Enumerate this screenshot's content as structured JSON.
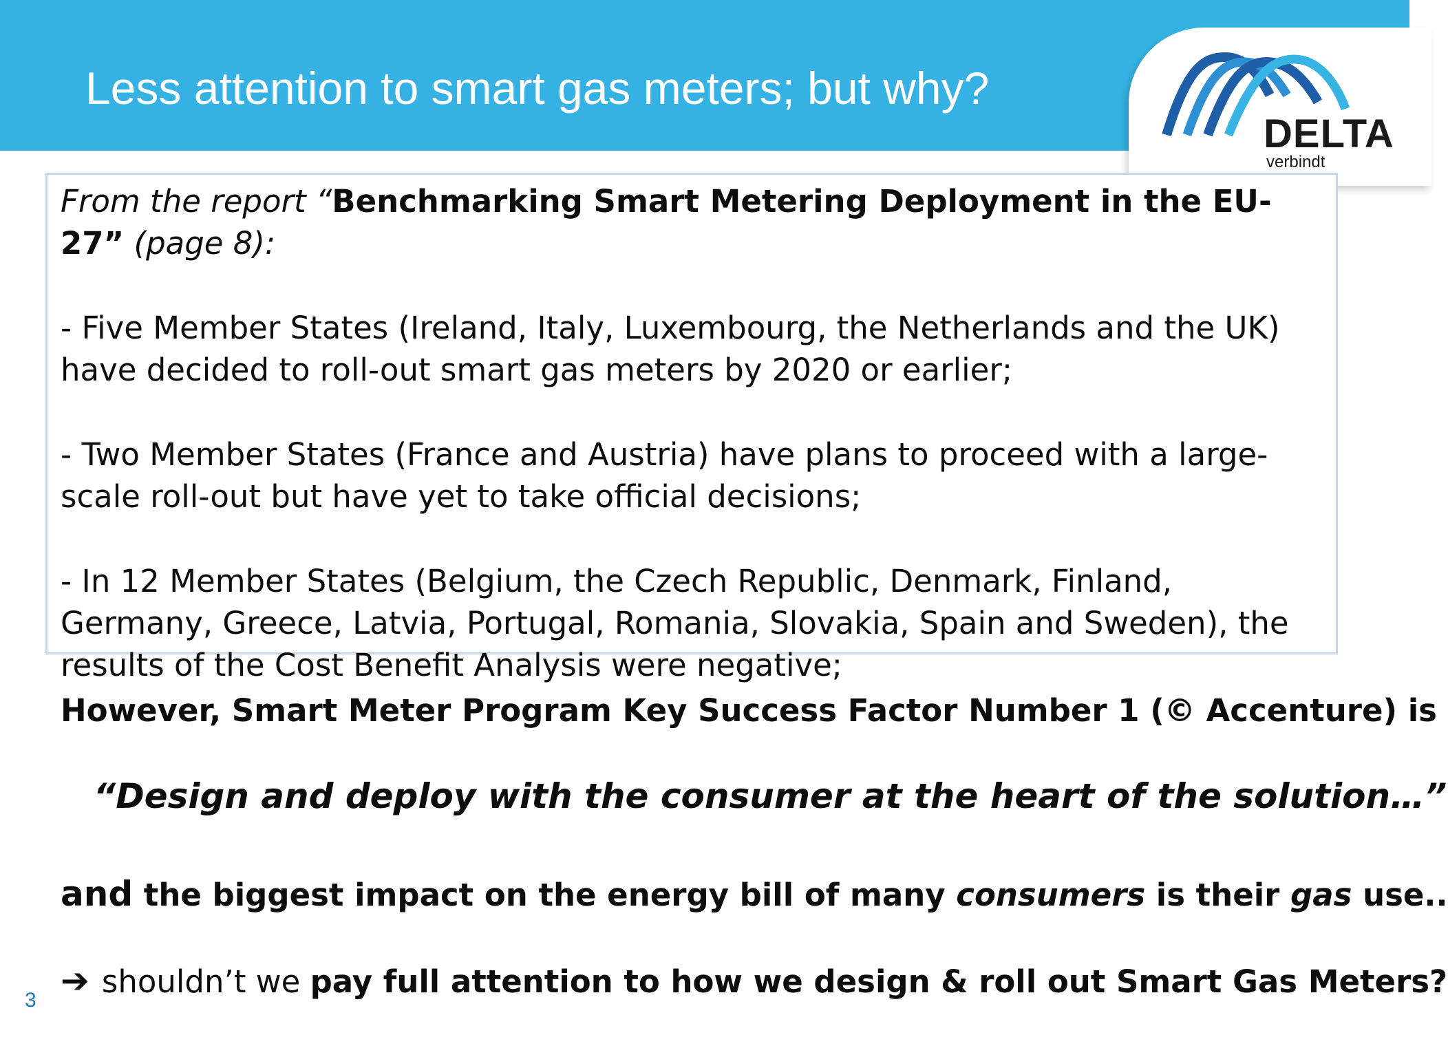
{
  "header": {
    "title": "Less attention to smart gas meters; but why?",
    "logo": {
      "wordmark": "DELTA",
      "tagline": "verbindt",
      "icon": "delta-arches-logo-icon",
      "colors": [
        "#1f5fa8",
        "#2f8fd3",
        "#37b3e4"
      ]
    }
  },
  "report": {
    "intro_prefix": "From the report “",
    "report_name": "Benchmarking Smart Metering Deployment in the EU-27”",
    "intro_suffix": " (page 8):",
    "bullets": [
      "- Five Member States (Ireland, Italy, Luxembourg, the Netherlands and the UK) have decided to roll-out smart gas meters by 2020 or earlier;",
      "- Two Member States (France and Austria) have plans to proceed with a large-scale roll-out but have yet to take official decisions;",
      "- In 12 Member States (Belgium, the Czech Republic, Denmark, Finland, Germany, Greece, Latvia, Portugal, Romania, Slovakia, Spain and Sweden), the results of the Cost Benefit Analysis were negative;"
    ]
  },
  "body": {
    "however_line": "However, Smart Meter Program Key Success Factor Number 1 (© Accenture) is",
    "quote": "“Design and deploy with the consumer at the heart of the solution…”",
    "and_line": {
      "part1": "and",
      "part2": " the biggest impact on the energy bill of  many ",
      "part3": "consumers",
      "part4": " is their ",
      "part5": "gas",
      "part6": " use.."
    },
    "conclusion": {
      "arrow_icon": "arrow-right-icon",
      "arrow_glyph": "➔",
      "plain": "shouldn’t we ",
      "bold": "pay full attention to how we design & roll out Smart Gas Meters?"
    }
  },
  "footer": {
    "page_number": "3"
  },
  "colors": {
    "header_band": "#35b2e3",
    "box_border": "#c6d6ec",
    "page_number": "#2277bb"
  }
}
